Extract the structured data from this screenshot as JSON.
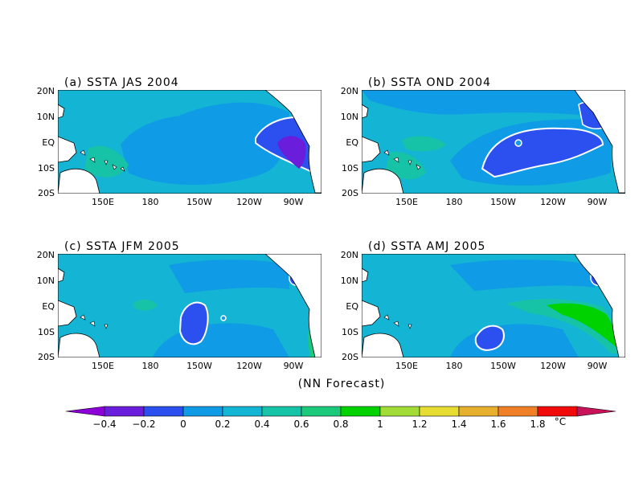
{
  "panels": [
    {
      "title": "(a) SSTA JAS 2004"
    },
    {
      "title": "(b) SSTA OND 2004"
    },
    {
      "title": "(c) SSTA JFM 2005"
    },
    {
      "title": "(d) SSTA AMJ 2005"
    }
  ],
  "lat_labels": [
    "20N",
    "10N",
    "EQ",
    "10S",
    "20S"
  ],
  "lon_labels": [
    "150E",
    "180",
    "150W",
    "120W",
    "90W"
  ],
  "forecast_label": "(NN Forecast)",
  "colorbar": {
    "unit": "°C",
    "tick_labels": [
      "−0.4",
      "−0.2",
      "0",
      "0.2",
      "0.4",
      "0.6",
      "0.8",
      "1",
      "1.2",
      "1.4",
      "1.6",
      "1.8"
    ],
    "colors": [
      "#8a00d6",
      "#6a1edc",
      "#2c4ff0",
      "#0f9be6",
      "#13b4d4",
      "#16c3a6",
      "#1cc97a",
      "#00d200",
      "#a2dc38",
      "#e6dc32",
      "#e6af2d",
      "#f08028",
      "#f00a0a",
      "#c8125a"
    ]
  },
  "colors": {
    "bg_val": "#13b4d4",
    "land": "#ffffff",
    "contour": "#ffffff"
  }
}
